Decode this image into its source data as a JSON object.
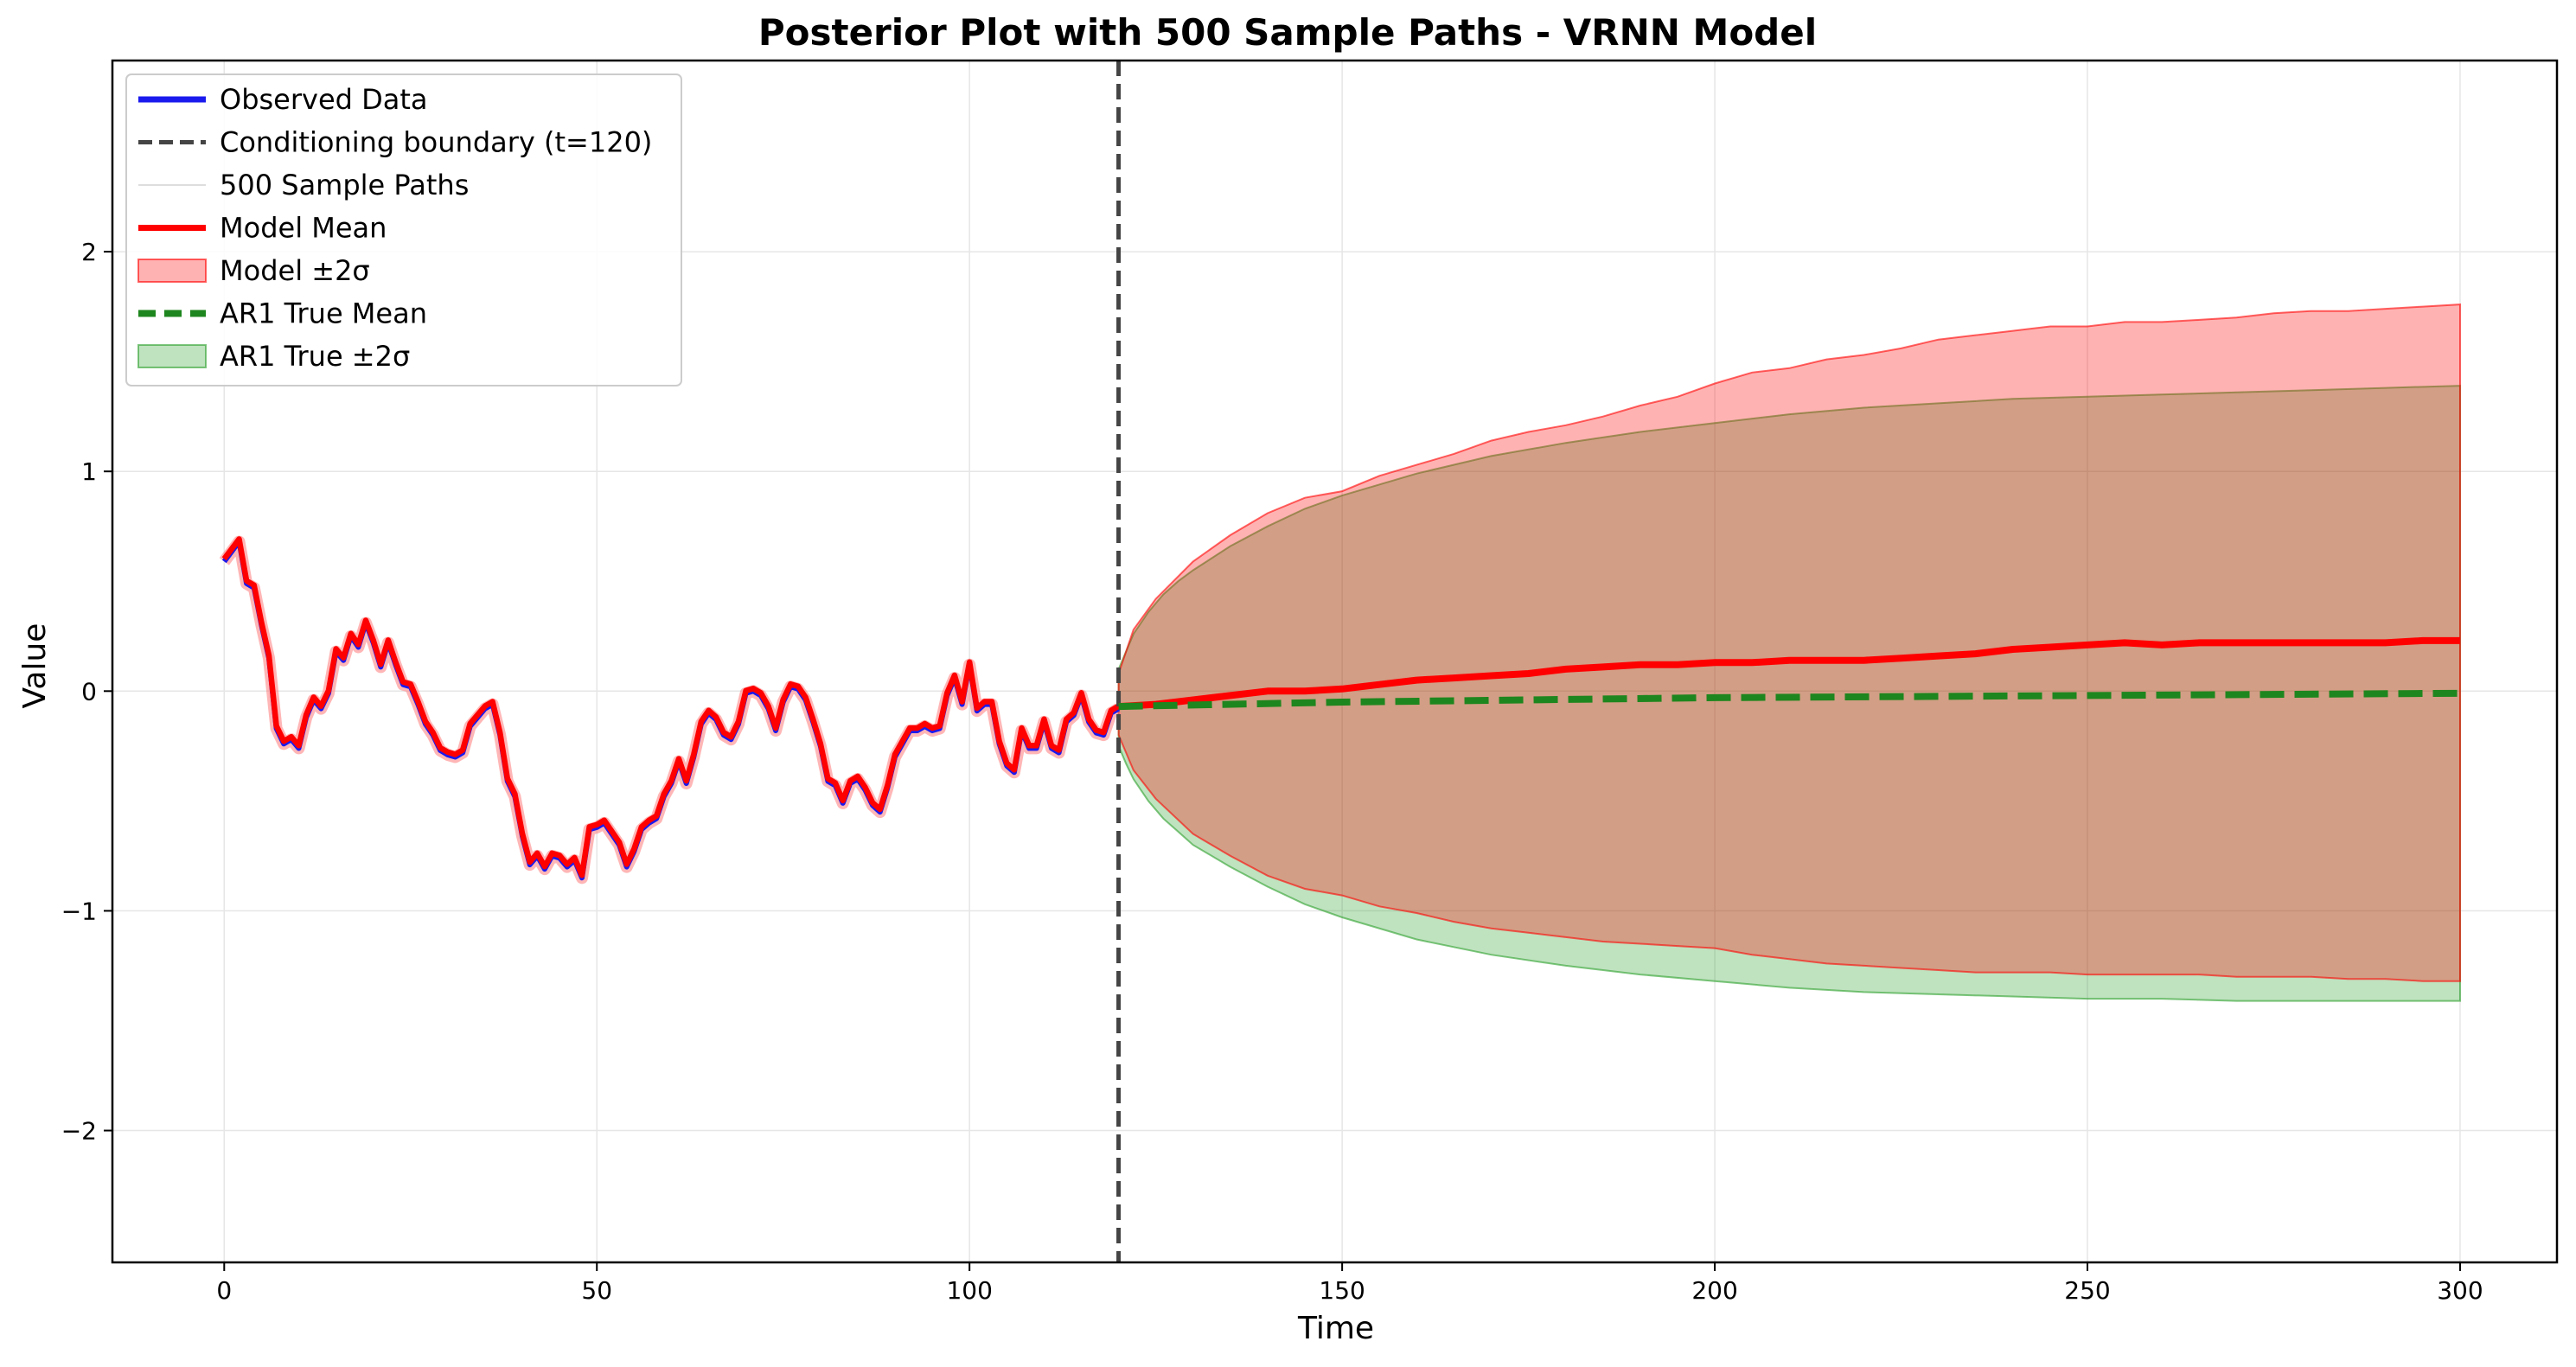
{
  "chart_data": {
    "type": "line",
    "title": "Posterior Plot with 500 Sample Paths - VRNN Model",
    "xlabel": "Time",
    "ylabel": "Value",
    "xlim": [
      -15,
      313
    ],
    "ylim": [
      -2.6,
      2.87
    ],
    "xticks": [
      0,
      50,
      100,
      150,
      200,
      250,
      300
    ],
    "yticks": [
      -2,
      -1,
      0,
      1,
      2
    ],
    "xtick_labels": [
      "0",
      "50",
      "100",
      "150",
      "200",
      "250",
      "300"
    ],
    "ytick_labels": [
      "−2",
      "−1",
      "0",
      "1",
      "2"
    ],
    "grid": true,
    "legend_position": "top-left",
    "conditioning_boundary": 120,
    "legend": [
      {
        "label": "Observed Data",
        "kind": "line",
        "color": "#1a1aee"
      },
      {
        "label": "Conditioning boundary (t=120)",
        "kind": "dashed",
        "color": "#444444"
      },
      {
        "label": "500 Sample Paths",
        "kind": "faint",
        "color": "#dddddd"
      },
      {
        "label": "Model Mean",
        "kind": "line",
        "color": "#ff0000"
      },
      {
        "label": "Model ±2σ",
        "kind": "patch",
        "color": "#ff0000"
      },
      {
        "label": "AR1 True Mean",
        "kind": "dashed-thick",
        "color": "#1e861e"
      },
      {
        "label": "AR1 True ±2σ",
        "kind": "patch",
        "color": "#2ca02c"
      }
    ],
    "observed": {
      "name": "Observed Data",
      "color": "#1a1aee",
      "x": [
        0,
        2,
        3,
        4,
        5,
        6,
        7,
        8,
        9,
        10,
        11,
        12,
        13,
        14,
        15,
        16,
        17,
        18,
        19,
        20,
        21,
        22,
        23,
        24,
        25,
        26,
        27,
        28,
        29,
        30,
        31,
        32,
        33,
        34,
        35,
        36,
        37,
        38,
        39,
        40,
        41,
        42,
        43,
        44,
        45,
        46,
        47,
        48,
        49,
        50,
        51,
        52,
        53,
        54,
        55,
        56,
        57,
        58,
        59,
        60,
        61,
        62,
        63,
        64,
        65,
        66,
        67,
        68,
        69,
        70,
        71,
        72,
        73,
        74,
        75,
        76,
        77,
        78,
        79,
        80,
        81,
        82,
        83,
        84,
        85,
        86,
        87,
        88,
        89,
        90,
        91,
        92,
        93,
        94,
        95,
        96,
        97,
        98,
        99,
        100,
        101,
        102,
        103,
        104,
        105,
        106,
        107,
        108,
        109,
        110,
        111,
        112,
        113,
        114,
        115,
        116,
        117,
        118,
        119,
        120
      ],
      "y": [
        0.59,
        0.68,
        0.49,
        0.47,
        0.3,
        0.15,
        -0.17,
        -0.24,
        -0.22,
        -0.26,
        -0.12,
        -0.04,
        -0.08,
        -0.01,
        0.18,
        0.14,
        0.25,
        0.2,
        0.31,
        0.22,
        0.11,
        0.22,
        0.12,
        0.03,
        0.02,
        -0.06,
        -0.15,
        -0.2,
        -0.27,
        -0.29,
        -0.3,
        -0.28,
        -0.16,
        -0.12,
        -0.08,
        -0.06,
        -0.2,
        -0.41,
        -0.48,
        -0.66,
        -0.79,
        -0.75,
        -0.81,
        -0.75,
        -0.76,
        -0.8,
        -0.77,
        -0.85,
        -0.63,
        -0.62,
        -0.6,
        -0.65,
        -0.7,
        -0.8,
        -0.73,
        -0.63,
        -0.6,
        -0.58,
        -0.48,
        -0.42,
        -0.32,
        -0.42,
        -0.3,
        -0.15,
        -0.1,
        -0.13,
        -0.2,
        -0.22,
        -0.15,
        -0.01,
        0.0,
        -0.02,
        -0.08,
        -0.18,
        -0.05,
        0.02,
        0.01,
        -0.04,
        -0.14,
        -0.25,
        -0.41,
        -0.43,
        -0.51,
        -0.42,
        -0.4,
        -0.45,
        -0.52,
        -0.55,
        -0.44,
        -0.3,
        -0.24,
        -0.18,
        -0.18,
        -0.16,
        -0.18,
        -0.17,
        -0.02,
        0.06,
        -0.06,
        0.12,
        -0.09,
        -0.06,
        -0.06,
        -0.24,
        -0.34,
        -0.37,
        -0.18,
        -0.26,
        -0.26,
        -0.14,
        -0.26,
        -0.28,
        -0.14,
        -0.11,
        -0.02,
        -0.14,
        -0.19,
        -0.2,
        -0.1,
        -0.08
      ]
    },
    "model_mean": {
      "name": "Model Mean",
      "color": "#ff0000",
      "x": [
        120,
        125,
        130,
        135,
        140,
        145,
        150,
        155,
        160,
        165,
        170,
        175,
        180,
        185,
        190,
        195,
        200,
        205,
        210,
        215,
        220,
        225,
        230,
        235,
        240,
        245,
        250,
        255,
        260,
        265,
        270,
        275,
        280,
        285,
        290,
        295,
        300
      ],
      "y": [
        -0.07,
        -0.06,
        -0.04,
        -0.02,
        0.0,
        0.0,
        0.01,
        0.03,
        0.05,
        0.06,
        0.07,
        0.08,
        0.1,
        0.11,
        0.12,
        0.12,
        0.13,
        0.13,
        0.14,
        0.14,
        0.14,
        0.15,
        0.16,
        0.17,
        0.19,
        0.2,
        0.21,
        0.22,
        0.21,
        0.22,
        0.22,
        0.22,
        0.22,
        0.22,
        0.22,
        0.23,
        0.23
      ]
    },
    "model_band": {
      "name": "Model ±2σ",
      "color": "#ff0000",
      "x": [
        120,
        122,
        125,
        130,
        135,
        140,
        145,
        150,
        155,
        160,
        165,
        170,
        175,
        180,
        185,
        190,
        195,
        200,
        205,
        210,
        215,
        220,
        225,
        230,
        235,
        240,
        245,
        250,
        255,
        260,
        265,
        270,
        275,
        280,
        285,
        290,
        295,
        300
      ],
      "upper": [
        0.08,
        0.28,
        0.42,
        0.59,
        0.71,
        0.81,
        0.88,
        0.91,
        0.98,
        1.03,
        1.08,
        1.14,
        1.18,
        1.21,
        1.25,
        1.3,
        1.34,
        1.4,
        1.45,
        1.47,
        1.51,
        1.53,
        1.56,
        1.6,
        1.62,
        1.64,
        1.66,
        1.66,
        1.68,
        1.68,
        1.69,
        1.7,
        1.72,
        1.73,
        1.73,
        1.74,
        1.75,
        1.76
      ],
      "lower": [
        -0.2,
        -0.36,
        -0.49,
        -0.65,
        -0.75,
        -0.84,
        -0.9,
        -0.93,
        -0.98,
        -1.01,
        -1.05,
        -1.08,
        -1.1,
        -1.12,
        -1.14,
        -1.15,
        -1.16,
        -1.17,
        -1.2,
        -1.22,
        -1.24,
        -1.25,
        -1.26,
        -1.27,
        -1.28,
        -1.28,
        -1.28,
        -1.29,
        -1.29,
        -1.29,
        -1.29,
        -1.3,
        -1.3,
        -1.3,
        -1.31,
        -1.31,
        -1.32,
        -1.32
      ]
    },
    "ar1_mean": {
      "name": "AR1 True Mean",
      "color": "#1e861e",
      "x": [
        120,
        150,
        200,
        250,
        300
      ],
      "y": [
        -0.07,
        -0.05,
        -0.03,
        -0.02,
        -0.01
      ]
    },
    "ar1_band": {
      "name": "AR1 True ±2σ",
      "color": "#2ca02c",
      "x": [
        120,
        121,
        122,
        124,
        126,
        128,
        130,
        135,
        140,
        145,
        150,
        160,
        170,
        180,
        190,
        200,
        210,
        220,
        230,
        240,
        250,
        260,
        270,
        280,
        290,
        300
      ],
      "upper": [
        0.1,
        0.18,
        0.26,
        0.36,
        0.44,
        0.5,
        0.55,
        0.66,
        0.75,
        0.83,
        0.89,
        0.99,
        1.07,
        1.13,
        1.18,
        1.22,
        1.26,
        1.29,
        1.31,
        1.33,
        1.34,
        1.35,
        1.36,
        1.37,
        1.38,
        1.39
      ],
      "lower": [
        -0.25,
        -0.33,
        -0.4,
        -0.5,
        -0.58,
        -0.64,
        -0.7,
        -0.8,
        -0.89,
        -0.97,
        -1.03,
        -1.13,
        -1.2,
        -1.25,
        -1.29,
        -1.32,
        -1.35,
        -1.37,
        -1.38,
        -1.39,
        -1.4,
        -1.4,
        -1.41,
        -1.41,
        -1.41,
        -1.41
      ]
    }
  }
}
